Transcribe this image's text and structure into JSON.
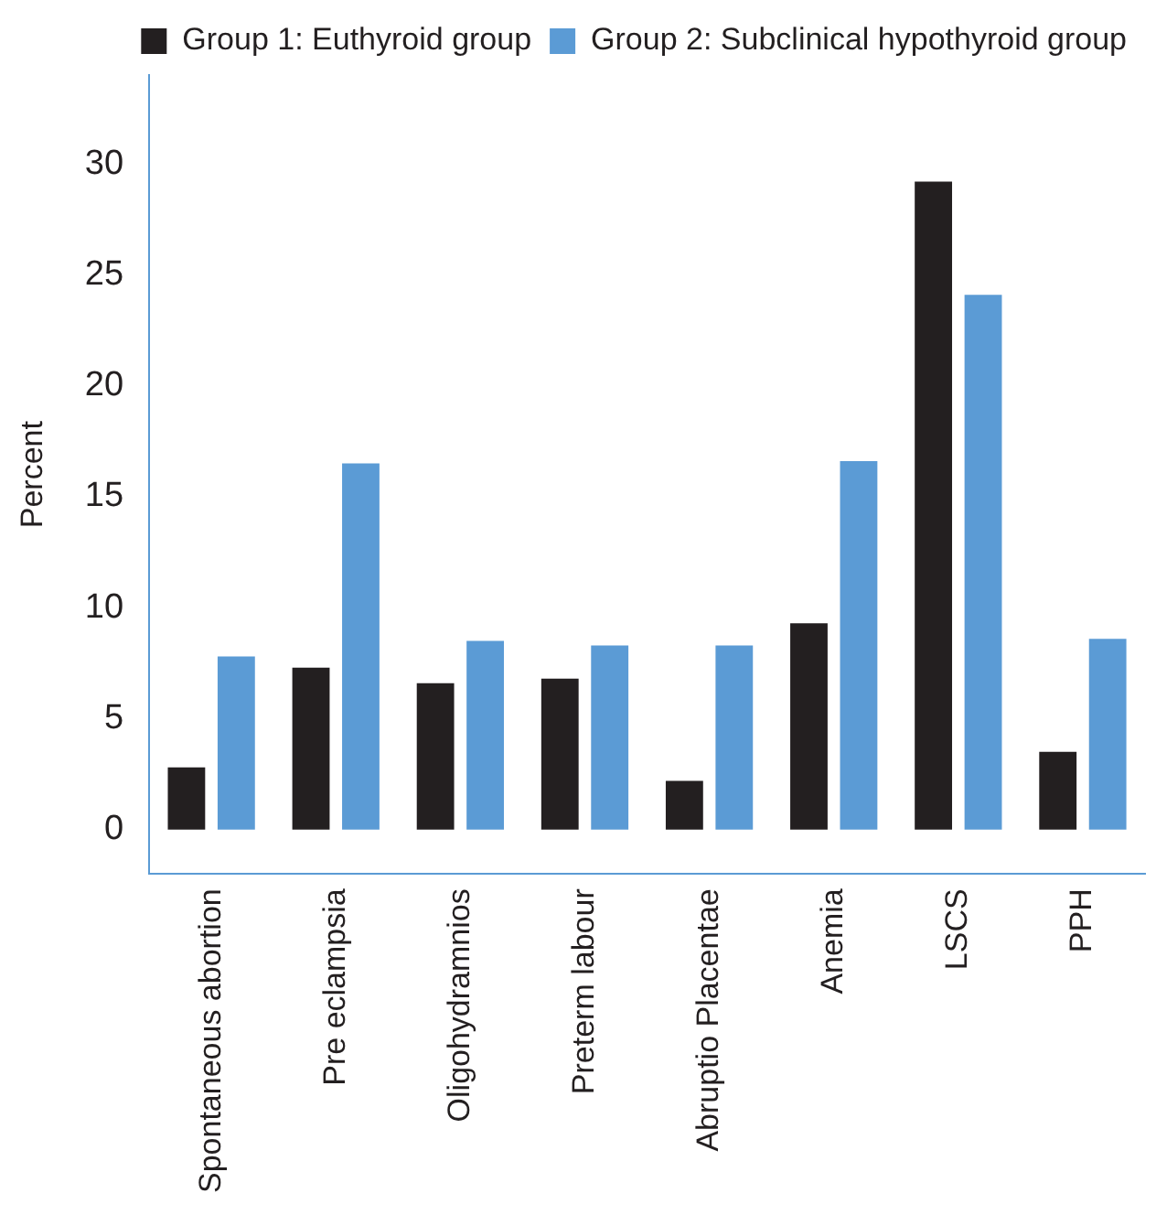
{
  "chart_data": {
    "type": "bar",
    "ylabel": "Percent",
    "categories": [
      "Spontaneous abortion",
      "Pre eclampsia",
      "Oligohydramnios",
      "Preterm labour",
      "Abruptio Placentae",
      "Anemia",
      "LSCS",
      "PPH"
    ],
    "series": [
      {
        "name": "Group 1: Euthyroid group",
        "color": "#231f20",
        "values": [
          2.8,
          7.3,
          6.6,
          6.8,
          2.2,
          9.3,
          29.2,
          3.5
        ]
      },
      {
        "name": "Group 2: Subclinical hypothyroid group",
        "color": "#5b9bd5",
        "values": [
          7.8,
          16.5,
          8.5,
          8.3,
          8.3,
          16.6,
          24.1,
          8.6
        ]
      }
    ],
    "ylim": [
      -2,
      34
    ],
    "yticks": [
      0,
      5,
      10,
      15,
      20,
      25,
      30
    ],
    "grid": false,
    "legend": "top right"
  }
}
